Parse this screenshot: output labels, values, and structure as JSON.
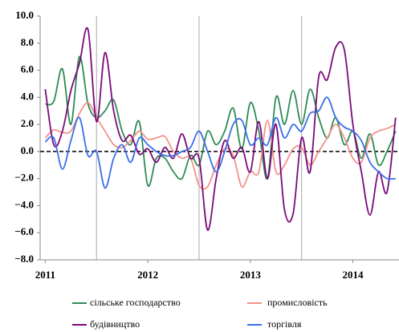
{
  "chart_data": {
    "type": "line",
    "x": [
      2011,
      2011.083,
      2011.167,
      2011.25,
      2011.333,
      2011.417,
      2011.5,
      2011.583,
      2011.667,
      2011.75,
      2011.833,
      2011.917,
      2012,
      2012.083,
      2012.167,
      2012.25,
      2012.333,
      2012.417,
      2012.5,
      2012.583,
      2012.667,
      2012.75,
      2012.833,
      2012.917,
      2013,
      2013.083,
      2013.167,
      2013.25,
      2013.333,
      2013.417,
      2013.5,
      2013.583,
      2013.667,
      2013.75,
      2013.833,
      2013.917,
      2014,
      2014.083,
      2014.167,
      2014.25,
      2014.333,
      2014.417
    ],
    "series": [
      {
        "name": "сільське господарство",
        "color": "#2e8b57",
        "values": [
          3.5,
          3.7,
          6.1,
          2.0,
          7.0,
          3.5,
          2.5,
          3.0,
          3.8,
          1.5,
          0.5,
          2.2,
          -2.5,
          -0.5,
          -0.5,
          -1.5,
          -2.0,
          -0.3,
          -1.0,
          1.5,
          0.5,
          1.5,
          3.2,
          0.2,
          3.6,
          1.5,
          -2.0,
          4.0,
          2.0,
          4.5,
          2.0,
          4.6,
          2.5,
          1.0,
          2.5,
          0.5,
          1.5,
          -0.5,
          1.3,
          -1.0,
          0.0,
          1.5
        ]
      },
      {
        "name": "промисловість",
        "color": "#f4928a",
        "values": [
          1.0,
          1.6,
          1.4,
          1.5,
          2.8,
          3.6,
          2.5,
          1.5,
          0.5,
          0.3,
          0.8,
          1.5,
          0.9,
          1.0,
          1.1,
          0.0,
          -0.5,
          -0.5,
          -2.5,
          -2.6,
          -1.0,
          0.2,
          -0.3,
          -2.6,
          -1.5,
          -1.5,
          2.3,
          -1.5,
          -1.0,
          0.2,
          0.3,
          -1.0,
          0.0,
          1.0,
          2.0,
          1.0,
          -0.5,
          -0.8,
          1.0,
          1.5,
          1.7,
          2.0
        ]
      },
      {
        "name": "будівництво",
        "color": "#7a0a7a",
        "values": [
          4.6,
          0.5,
          1.5,
          4.5,
          6.5,
          9.0,
          2.2,
          7.3,
          3.0,
          0.8,
          1.2,
          -0.2,
          0.2,
          -0.8,
          0.3,
          -0.5,
          1.3,
          -0.5,
          -0.5,
          -5.8,
          -2.0,
          0.8,
          -0.5,
          0.3,
          -1.5,
          2.2,
          -2.0,
          2.0,
          -4.3,
          -4.6,
          1.0,
          -1.5,
          5.5,
          5.3,
          7.7,
          7.5,
          2.0,
          -1.5,
          -4.7,
          -1.5,
          -3.0,
          2.5
        ]
      },
      {
        "name": "торгівля",
        "color": "#3b6ee8",
        "values": [
          0.7,
          1.0,
          -1.3,
          0.8,
          2.5,
          -0.3,
          0.0,
          -2.7,
          -0.5,
          0.5,
          -0.8,
          1.0,
          0.5,
          0.0,
          -0.3,
          -0.3,
          0.0,
          0.3,
          1.5,
          0.0,
          -1.5,
          0.0,
          2.0,
          2.3,
          0.5,
          1.0,
          0.5,
          2.5,
          1.0,
          2.0,
          1.5,
          2.8,
          3.0,
          4.0,
          2.5,
          1.8,
          1.5,
          0.8,
          -0.8,
          -1.5,
          -2.0,
          -2.0
        ]
      }
    ],
    "xlim": [
      2010.95,
      2014.45
    ],
    "xticks": [
      2011,
      2012,
      2013,
      2014
    ],
    "ylim": [
      -8,
      10
    ],
    "yticks": [
      {
        "value": -8,
        "label": "−8.0"
      },
      {
        "value": -6,
        "label": "−6.0"
      },
      {
        "value": -4,
        "label": "−4.0"
      },
      {
        "value": -2,
        "label": "−2.0"
      },
      {
        "value": 0,
        "label": "0.0"
      },
      {
        "value": 2,
        "label": "2.0"
      },
      {
        "value": 4,
        "label": "4.0"
      },
      {
        "value": 6,
        "label": "6.0"
      },
      {
        "value": 8,
        "label": "8.0"
      },
      {
        "value": 10,
        "label": "10.0"
      }
    ]
  }
}
